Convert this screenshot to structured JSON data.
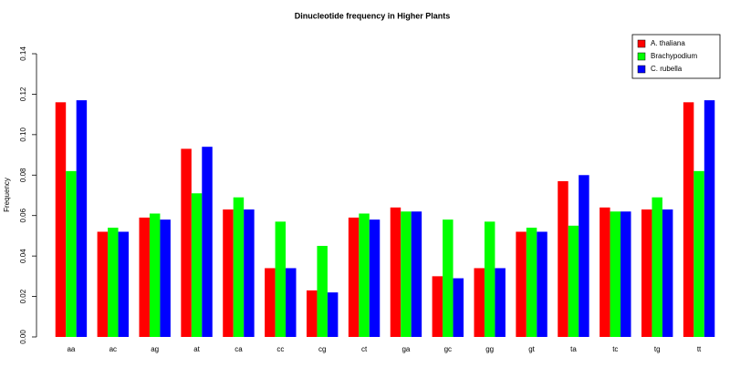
{
  "chart_data": {
    "type": "bar",
    "title": "Dinucleotide frequency in Higher Plants",
    "y_label": "Frequency",
    "categories": [
      "aa",
      "ac",
      "ag",
      "at",
      "ca",
      "cc",
      "cg",
      "ct",
      "ga",
      "gc",
      "gg",
      "gt",
      "ta",
      "tc",
      "tg",
      "tt"
    ],
    "series": [
      {
        "name": "A. thaliana",
        "color": "#ff0000",
        "values": [
          0.116,
          0.052,
          0.059,
          0.093,
          0.063,
          0.034,
          0.023,
          0.059,
          0.064,
          0.03,
          0.034,
          0.052,
          0.077,
          0.064,
          0.063,
          0.116
        ]
      },
      {
        "name": "Brachypodium",
        "color": "#00ff00",
        "values": [
          0.082,
          0.054,
          0.061,
          0.071,
          0.069,
          0.057,
          0.045,
          0.061,
          0.062,
          0.058,
          0.057,
          0.054,
          0.055,
          0.062,
          0.069,
          0.082
        ]
      },
      {
        "name": "C. rubella",
        "color": "#0000ff",
        "values": [
          0.117,
          0.052,
          0.058,
          0.094,
          0.063,
          0.034,
          0.022,
          0.058,
          0.062,
          0.029,
          0.034,
          0.052,
          0.08,
          0.062,
          0.063,
          0.117
        ]
      }
    ],
    "ylim": [
      0,
      0.14
    ],
    "yticks": [
      {
        "value": 0,
        "label": "0.00"
      },
      0.02,
      0.04,
      0.06,
      0.08,
      {
        "value": 0.1,
        "label": "0.10"
      },
      0.12,
      0.14
    ],
    "legend": "top-right"
  }
}
